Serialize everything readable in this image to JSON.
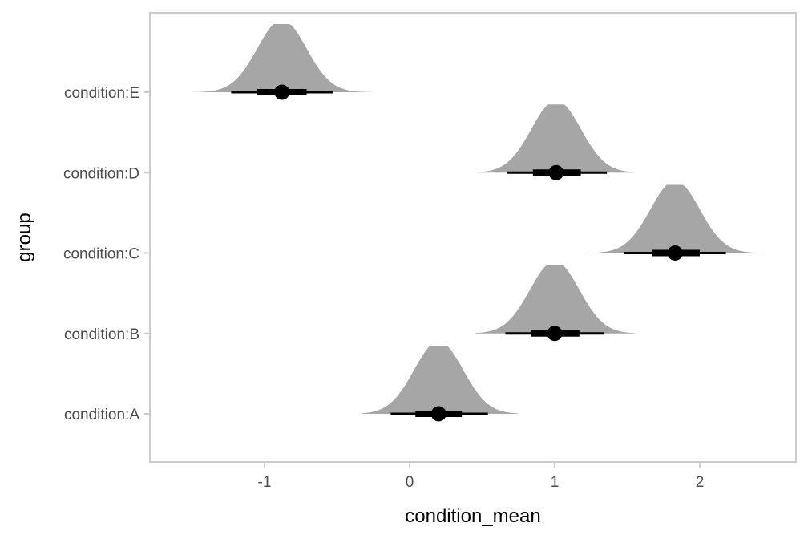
{
  "chart_data": {
    "type": "halfeye",
    "title": "",
    "xlabel": "condition_mean",
    "ylabel": "group",
    "xlim": [
      -1.8,
      2.65
    ],
    "x_ticks": [
      -1,
      0,
      1,
      2
    ],
    "x_tick_labels": [
      "-1",
      "0",
      "1",
      "2"
    ],
    "categories": [
      "condition:A",
      "condition:B",
      "condition:C",
      "condition:D",
      "condition:E"
    ],
    "grid": false,
    "legend": "none",
    "series": [
      {
        "category": "condition:A",
        "median": 0.2,
        "interval_66": [
          0.04,
          0.36
        ],
        "interval_95": [
          -0.13,
          0.54
        ],
        "density_range": [
          -0.33,
          0.75
        ],
        "density_sd": 0.17
      },
      {
        "category": "condition:B",
        "median": 1.0,
        "interval_66": [
          0.84,
          1.17
        ],
        "interval_95": [
          0.66,
          1.34
        ],
        "density_range": [
          0.45,
          1.55
        ],
        "density_sd": 0.17
      },
      {
        "category": "condition:C",
        "median": 1.83,
        "interval_66": [
          1.67,
          2.0
        ],
        "interval_95": [
          1.48,
          2.18
        ],
        "density_range": [
          1.22,
          2.45
        ],
        "density_sd": 0.17
      },
      {
        "category": "condition:D",
        "median": 1.01,
        "interval_66": [
          0.85,
          1.18
        ],
        "interval_95": [
          0.67,
          1.36
        ],
        "density_range": [
          0.47,
          1.55
        ],
        "density_sd": 0.17
      },
      {
        "category": "condition:E",
        "median": -0.88,
        "interval_66": [
          -1.05,
          -0.71
        ],
        "interval_95": [
          -1.23,
          -0.53
        ],
        "density_range": [
          -1.5,
          -0.25
        ],
        "density_sd": 0.17
      }
    ],
    "colors": {
      "density": "#a6a6a6",
      "interval": "#000000",
      "panel_border": "#cccccc",
      "tick_text": "#4d4d4d",
      "title_text": "#000000"
    }
  }
}
